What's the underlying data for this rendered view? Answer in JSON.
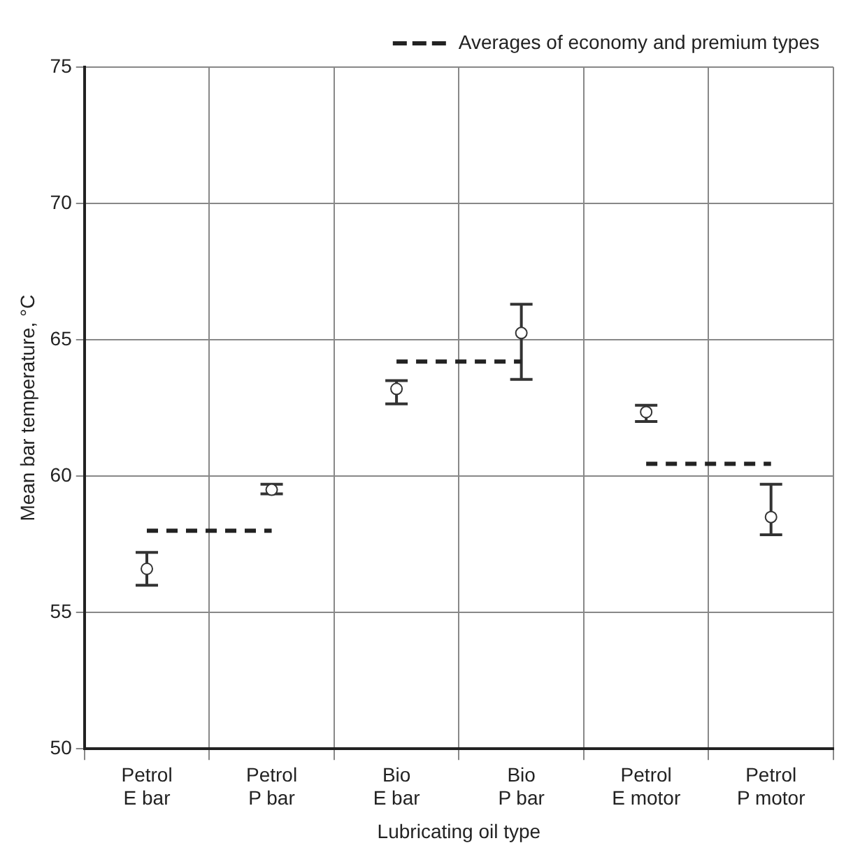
{
  "chart_data": {
    "type": "scatter",
    "xlabel": "Lubricating oil type",
    "ylabel": "Mean bar temperature, °C",
    "categories": [
      "Petrol\nE bar",
      "Petrol\nP bar",
      "Bio\nE bar",
      "Bio\nP bar",
      "Petrol\nE motor",
      "Petrol\nP motor"
    ],
    "series": [
      {
        "color": "#333333",
        "marker": "circle",
        "values": [
          56.6,
          59.5,
          63.2,
          65.25,
          62.35,
          58.5
        ],
        "errors": [
          [
            56.0,
            57.2
          ],
          [
            59.35,
            59.7
          ],
          [
            62.65,
            63.5
          ],
          [
            63.55,
            66.3
          ],
          [
            62.0,
            62.6
          ],
          [
            57.85,
            59.7
          ]
        ]
      },
      {
        "type": "line",
        "name": "Averages of economy and premium types",
        "color": "#222222",
        "line_style": "dashed",
        "marker": "none",
        "values": [
          58.0,
          58.0,
          null,
          null,
          null,
          null
        ]
      },
      {
        "type": "line",
        "color": "#222222",
        "line_style": "dashed",
        "marker": "none",
        "values": [
          null,
          null,
          64.2,
          64.2,
          null,
          null
        ]
      },
      {
        "type": "line",
        "color": "#222222",
        "line_style": "dashed",
        "marker": "none",
        "values": [
          null,
          null,
          null,
          null,
          60.45,
          60.45
        ]
      }
    ],
    "ylim": [
      50,
      75
    ],
    "yticks": [
      50,
      55,
      60,
      65,
      70,
      75
    ],
    "grid": true,
    "legend": "top right"
  }
}
